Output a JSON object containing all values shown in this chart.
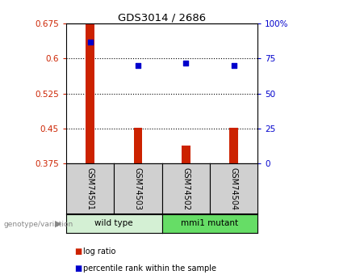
{
  "title": "GDS3014 / 2686",
  "samples": [
    "GSM74501",
    "GSM74503",
    "GSM74502",
    "GSM74504"
  ],
  "log_ratio": [
    0.675,
    0.452,
    0.413,
    0.452
  ],
  "percentile_rank": [
    87,
    70,
    72,
    70
  ],
  "bar_baseline": 0.375,
  "ylim_left": [
    0.375,
    0.675
  ],
  "ylim_right": [
    0,
    100
  ],
  "yticks_left": [
    0.375,
    0.45,
    0.525,
    0.6,
    0.675
  ],
  "ytick_labels_left": [
    "0.375",
    "0.45",
    "0.525",
    "0.6",
    "0.675"
  ],
  "yticks_right": [
    0,
    25,
    50,
    75,
    100
  ],
  "ytick_labels_right": [
    "0",
    "25",
    "50",
    "75",
    "100%"
  ],
  "groups": [
    {
      "label": "wild type",
      "indices": [
        0,
        1
      ],
      "color": "#d4f0d4"
    },
    {
      "label": "mmi1 mutant",
      "indices": [
        2,
        3
      ],
      "color": "#66dd66"
    }
  ],
  "bar_color": "#cc2200",
  "scatter_color": "#0000cc",
  "genotype_label": "genotype/variation",
  "legend_bar_label": "log ratio",
  "legend_scatter_label": "percentile rank within the sample",
  "background_color": "#ffffff",
  "plot_bg_color": "#ffffff",
  "sample_box_color": "#d0d0d0",
  "bar_width": 0.18
}
